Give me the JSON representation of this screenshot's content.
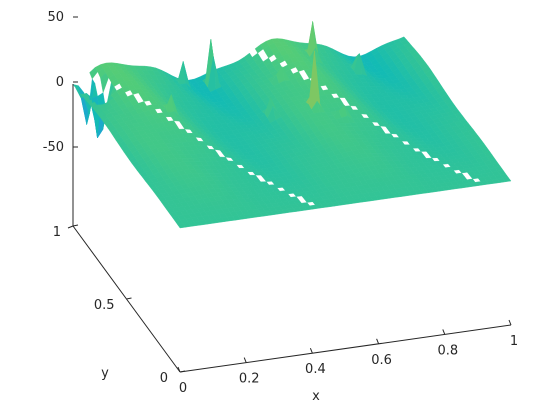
{
  "figure_background": "#ffffff",
  "chart_data": {
    "type": "surface",
    "title": "",
    "xlabel": "x",
    "ylabel": "y",
    "zlabel": "",
    "xlim": [
      0,
      1
    ],
    "ylim": [
      0,
      1
    ],
    "zlim": [
      -50,
      50
    ],
    "x_ticks": [
      0,
      0.2,
      0.4,
      0.6,
      0.8,
      1
    ],
    "x_tick_labels": [
      "0",
      "0.2",
      "0.4",
      "0.6",
      "0.8",
      "1"
    ],
    "y_ticks": [
      0,
      0.5,
      1
    ],
    "y_tick_labels": [
      "0",
      "0.5",
      "1"
    ],
    "z_ticks": [
      -50,
      0,
      50
    ],
    "z_tick_labels": [
      "-50",
      "0",
      "50"
    ],
    "grid": false,
    "legend": "none",
    "colormap": "parula",
    "colormap_stops": [
      "#3e26a8",
      "#2d8cf2",
      "#13bbb4",
      "#51cc79",
      "#c6c03f",
      "#f9d32a"
    ],
    "base_surface": "z(x,y) ≈ 10·sin(4πx)·y  (wave ridges reaching ≈10 along the back edge, flat near y = 0)",
    "features": {
      "ridges_at_y1": [
        {
          "x": 0.125,
          "z": 10
        },
        {
          "x": 0.625,
          "z": 10
        }
      ],
      "crease_lines": [
        {
          "x_at_y0": 0.42,
          "x_at_y1": 0.04
        },
        {
          "x_at_y0": 0.92,
          "x_at_y1": 0.54
        }
      ],
      "spikes": [
        {
          "x": 0.4,
          "y": 0.94,
          "z": 45
        },
        {
          "x": 0.6,
          "y": 0.6,
          "z": 42
        },
        {
          "x": 0.7,
          "y": 0.92,
          "z": 28
        },
        {
          "x": 0.32,
          "y": 0.95,
          "z": 20
        },
        {
          "x": 0.82,
          "y": 0.86,
          "z": 22
        },
        {
          "x": 0.48,
          "y": 0.64,
          "z": 18
        },
        {
          "x": 0.66,
          "y": 0.52,
          "z": 14
        },
        {
          "x": 0.2,
          "y": 0.7,
          "z": 12
        },
        {
          "x": 0.56,
          "y": 0.8,
          "z": 16
        }
      ],
      "dips": [
        {
          "x": 0.04,
          "y": 0.88,
          "z": -45
        },
        {
          "x": 0.03,
          "y": 0.97,
          "z": -38
        },
        {
          "x": 0.06,
          "y": 0.9,
          "z": -25
        }
      ]
    }
  }
}
